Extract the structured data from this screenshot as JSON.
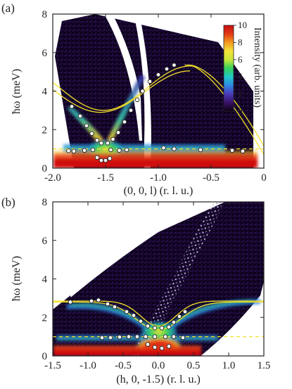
{
  "chart_data": [
    {
      "type": "heatmap",
      "panel_label": "(a)",
      "xlabel": "(0, 0, l) (r. l. u.)",
      "ylabel": "ħω (meV)",
      "xlim": [
        -2.0,
        0.0
      ],
      "ylim": [
        0,
        8
      ],
      "xticks": [
        -2.0,
        -1.5,
        -1.0,
        -0.5,
        0
      ],
      "xtick_labels": [
        "-2.0",
        "-1.5",
        "-1.0",
        "-0.5",
        "0"
      ],
      "yticks": [
        0,
        2,
        4,
        6,
        8
      ],
      "ytick_labels": [
        "0",
        "2",
        "4",
        "6",
        "8"
      ],
      "colorbar": {
        "label": "Intensity (arb. units)",
        "range": [
          0,
          10
        ],
        "ticks": [
          "0",
          "2",
          "4",
          "6",
          "8",
          "10"
        ],
        "colors": [
          "#0b0015",
          "#3a1266",
          "#4b3ab8",
          "#2f86e6",
          "#22c9c9",
          "#35d05a",
          "#c8e63a",
          "#f3e23a",
          "#f39a1e",
          "#e23a16",
          "#c40c0c"
        ]
      },
      "dashed_line_energy": 1.0,
      "data_points": [
        {
          "x": -1.82,
          "y": 3.2
        },
        {
          "x": -1.74,
          "y": 2.7
        },
        {
          "x": -1.68,
          "y": 2.2
        },
        {
          "x": -1.63,
          "y": 1.8
        },
        {
          "x": -1.58,
          "y": 1.45
        },
        {
          "x": -1.54,
          "y": 1.3
        },
        {
          "x": -1.48,
          "y": 1.3
        },
        {
          "x": -1.43,
          "y": 1.5
        },
        {
          "x": -1.38,
          "y": 1.85
        },
        {
          "x": -1.32,
          "y": 2.4
        },
        {
          "x": -1.26,
          "y": 3.0
        },
        {
          "x": -1.2,
          "y": 3.55
        },
        {
          "x": -1.15,
          "y": 4.0
        },
        {
          "x": -1.08,
          "y": 4.5
        },
        {
          "x": -1.0,
          "y": 4.85
        },
        {
          "x": -0.92,
          "y": 5.15
        },
        {
          "x": -0.85,
          "y": 5.35
        },
        {
          "x": -1.85,
          "y": 0.9
        },
        {
          "x": -1.8,
          "y": 0.88
        },
        {
          "x": -1.7,
          "y": 0.92
        },
        {
          "x": -1.62,
          "y": 0.95
        },
        {
          "x": -1.45,
          "y": 0.95
        },
        {
          "x": -1.37,
          "y": 0.92
        },
        {
          "x": -1.3,
          "y": 0.95
        },
        {
          "x": -0.95,
          "y": 1.05
        },
        {
          "x": -0.85,
          "y": 1.0
        },
        {
          "x": -0.6,
          "y": 0.95
        },
        {
          "x": -0.3,
          "y": 0.92
        },
        {
          "x": -0.2,
          "y": 0.88
        },
        {
          "x": -1.58,
          "y": 0.55
        },
        {
          "x": -1.54,
          "y": 0.4
        },
        {
          "x": -1.5,
          "y": 0.4
        },
        {
          "x": -1.46,
          "y": 0.5
        }
      ]
    },
    {
      "type": "heatmap",
      "panel_label": "(b)",
      "xlabel": "(h, 0, -1.5) (r. l. u.)",
      "ylabel": "ħω (meV)",
      "xlim": [
        -1.5,
        1.5
      ],
      "ylim": [
        0,
        8
      ],
      "xticks": [
        -1.5,
        -1.0,
        -0.5,
        0.0,
        0.5,
        1.0,
        1.5
      ],
      "xtick_labels": [
        "-1.5",
        "-1.0",
        "-0.5",
        "0.0",
        "0.5",
        "1.0",
        "1.5"
      ],
      "yticks": [
        0,
        2,
        4,
        6,
        8
      ],
      "ytick_labels": [
        "0",
        "2",
        "4",
        "6",
        "8"
      ],
      "dashed_line_energy": 1.0,
      "data_points": [
        {
          "x": -1.25,
          "y": 2.8
        },
        {
          "x": -0.95,
          "y": 2.85
        },
        {
          "x": -0.85,
          "y": 2.9
        },
        {
          "x": -0.72,
          "y": 2.7
        },
        {
          "x": -0.62,
          "y": 2.55
        },
        {
          "x": -0.45,
          "y": 2.3
        },
        {
          "x": -0.35,
          "y": 2.1
        },
        {
          "x": -0.25,
          "y": 1.8
        },
        {
          "x": -0.15,
          "y": 1.55
        },
        {
          "x": -0.05,
          "y": 1.45
        },
        {
          "x": 0.05,
          "y": 1.45
        },
        {
          "x": 0.15,
          "y": 1.5
        },
        {
          "x": 0.22,
          "y": 1.75
        },
        {
          "x": 0.3,
          "y": 2.05
        },
        {
          "x": 0.38,
          "y": 2.3
        },
        {
          "x": -0.8,
          "y": 0.95
        },
        {
          "x": -0.68,
          "y": 0.95
        },
        {
          "x": -0.55,
          "y": 0.98
        },
        {
          "x": -0.42,
          "y": 1.0
        },
        {
          "x": -0.3,
          "y": 1.0
        },
        {
          "x": -0.18,
          "y": 1.0
        },
        {
          "x": -0.05,
          "y": 1.0
        },
        {
          "x": 0.1,
          "y": 1.0
        },
        {
          "x": 0.22,
          "y": 1.0
        },
        {
          "x": 0.35,
          "y": 0.95
        },
        {
          "x": -0.15,
          "y": 0.6
        },
        {
          "x": -0.05,
          "y": 0.45
        },
        {
          "x": 0.05,
          "y": 0.4
        },
        {
          "x": 0.15,
          "y": 0.5
        }
      ]
    }
  ],
  "colors": {
    "background": "#0b0015",
    "model_curve": "#f3e12a",
    "dashed_line": "#f3e12a",
    "marker_face": "#ffffff",
    "marker_edge": "#222222",
    "frame": "#222222"
  }
}
